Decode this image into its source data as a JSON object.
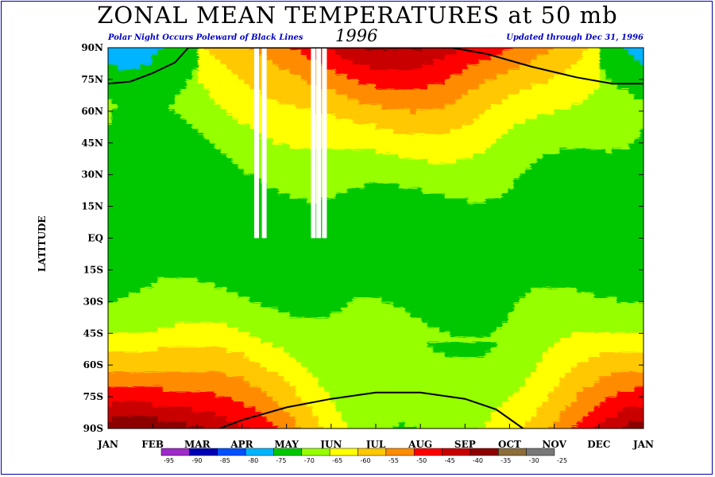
{
  "title": "ZONAL MEAN TEMPERATURES at 50 mb",
  "subtitle_left": "Polar Night Occurs Poleward of Black Lines",
  "year": "1996",
  "subtitle_right": "Updated through Dec 31, 1996",
  "colors": {
    "frame": "#0000a0",
    "note": "#0000c0"
  },
  "chart_data": {
    "type": "heatmap",
    "title": "ZONAL MEAN TEMPERATURES at 50 mb",
    "xlabel": "",
    "ylabel": "LATITUDE",
    "x_ticks": [
      "JAN",
      "FEB",
      "MAR",
      "APR",
      "MAY",
      "JUN",
      "JUL",
      "AUG",
      "SEP",
      "OCT",
      "NOV",
      "DEC",
      "JAN"
    ],
    "y_ticks": [
      "90N",
      "75N",
      "60N",
      "45N",
      "30N",
      "15N",
      "EQ",
      "15S",
      "30S",
      "45S",
      "60S",
      "75S",
      "90S"
    ],
    "y_range": [
      -90,
      90
    ],
    "x_range_months": [
      0,
      12
    ],
    "colorbar": {
      "levels": [
        -95,
        -90,
        -85,
        -80,
        -75,
        -70,
        -65,
        -60,
        -55,
        -50,
        -45,
        -40,
        -35,
        -30,
        -25
      ],
      "labels": [
        "-95",
        "-90",
        "-85",
        "-80",
        "-75",
        "-70",
        "-65",
        "-60",
        "-55",
        "-50",
        "-45",
        "-40",
        "-35",
        "-30",
        "-25"
      ],
      "colors": [
        "#9d2bc8",
        "#0000b4",
        "#0050ff",
        "#00b4ff",
        "#00c800",
        "#96ff00",
        "#ffff00",
        "#ffc800",
        "#ff8c00",
        "#ff0000",
        "#c80000",
        "#8c0000",
        "#8c6e3c",
        "#787878"
      ]
    },
    "polar_night_lines": {
      "north": {
        "month": [
          0,
          0.5,
          1,
          1.5,
          1.8,
          7.7,
          8.5,
          9.5,
          10.5,
          11.3,
          12
        ],
        "lat": [
          73,
          74,
          78,
          83,
          90,
          90,
          87,
          81,
          76,
          73,
          73
        ]
      },
      "south": {
        "month": [
          2.5,
          3,
          4,
          5,
          6,
          7,
          8,
          8.7,
          9.3
        ],
        "lat": [
          -90,
          -86,
          -80,
          -76,
          -73,
          -73,
          -76,
          -81,
          -90
        ]
      }
    },
    "missing_data_months": [
      3.33,
      3.5,
      4.6,
      4.72,
      4.85
    ]
  }
}
